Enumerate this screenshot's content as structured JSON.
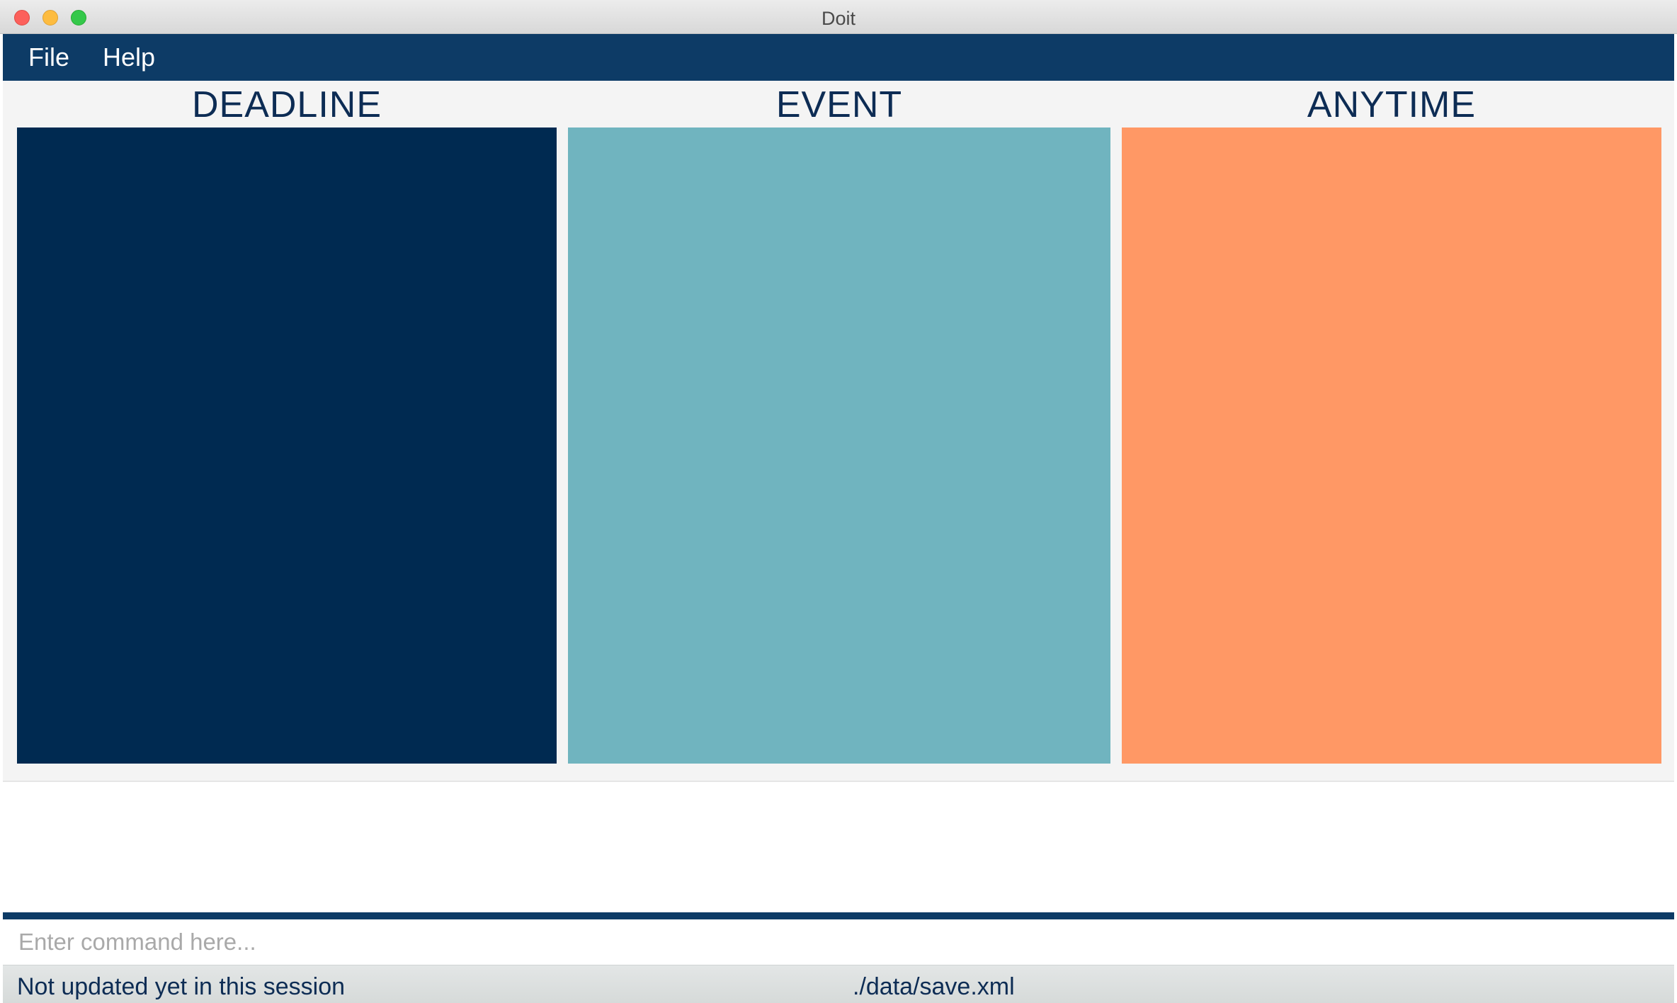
{
  "window": {
    "title": "Doit"
  },
  "menu": {
    "items": [
      {
        "label": "File"
      },
      {
        "label": "Help"
      }
    ]
  },
  "columns": [
    {
      "label": "DEADLINE",
      "color": "#002a51"
    },
    {
      "label": "EVENT",
      "color": "#70b4bf"
    },
    {
      "label": "ANYTIME",
      "color": "#ff9865"
    }
  ],
  "command": {
    "placeholder": "Enter command here...",
    "value": ""
  },
  "status": {
    "sync": "Not updated yet in this session",
    "save_location": "./data/save.xml"
  },
  "colors": {
    "menu_bar": "#0d3b66",
    "text_dark": "#0d2c54"
  }
}
